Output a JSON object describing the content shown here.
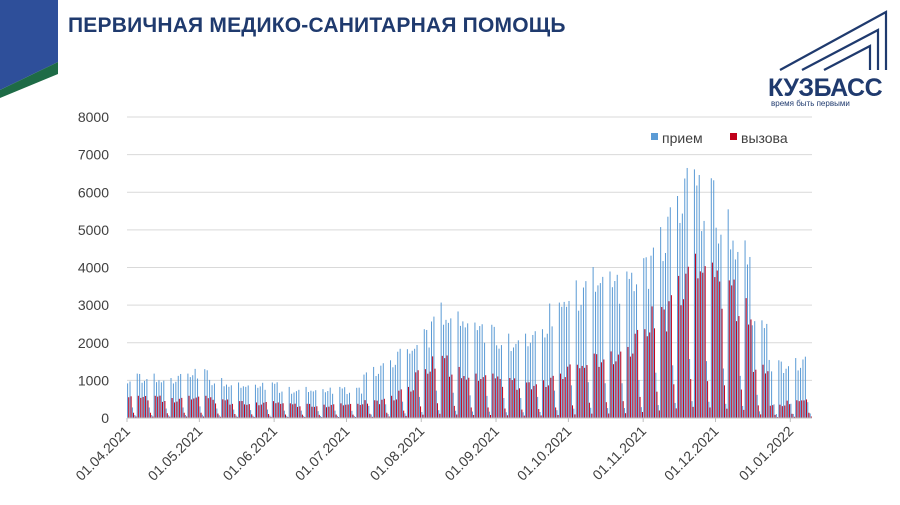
{
  "header": {
    "title": "ПЕРВИЧНАЯ МЕДИКО-САНИТАРНАЯ ПОМОЩЬ"
  },
  "logo": {
    "name": "КУЗБАСС",
    "tagline": "время быть первыми"
  },
  "colors": {
    "title": "#1f3a6e",
    "corner_blue": "#2e4f9a",
    "corner_green": "#1e6b46",
    "series_priem": "#5b9bd5",
    "series_vyzova": "#c0001a"
  },
  "chart_data": {
    "type": "bar",
    "ylim": [
      0,
      8000
    ],
    "yticks": [
      "0",
      "1000",
      "2000",
      "3000",
      "4000",
      "5000",
      "6000",
      "7000",
      "8000"
    ],
    "x_range": [
      "01.04.2021",
      "09.01.2022"
    ],
    "xticks": [
      "01.04.2021",
      "01.05.2021",
      "01.06.2021",
      "01.07.2021",
      "01.08.2021",
      "01.09.2021",
      "01.10.2021",
      "01.11.2021",
      "01.12.2021",
      "01.01.2022"
    ],
    "grid": "horizontal",
    "legend_position": "top-right",
    "series": [
      {
        "name": "прием",
        "color": "#5b9bd5",
        "weekly_values": [
          1000,
          1000,
          900,
          1000,
          1100,
          900,
          800,
          750,
          800,
          700,
          700,
          650,
          700,
          680,
          1150,
          1300,
          1550,
          2000,
          2600,
          2400,
          2150,
          2100,
          1900,
          1900,
          2000,
          2600,
          3100,
          3400,
          3300,
          3300,
          3600,
          4300,
          5000,
          5600,
          5400,
          4700,
          4000,
          2200,
          1300,
          1350,
          1500
        ]
      },
      {
        "name": "вызова",
        "color": "#c0001a",
        "weekly_values": [
          500,
          500,
          450,
          500,
          500,
          420,
          380,
          350,
          380,
          330,
          320,
          300,
          330,
          320,
          400,
          500,
          700,
          1100,
          1400,
          1150,
          1000,
          1000,
          900,
          800,
          850,
          1000,
          1200,
          1450,
          1500,
          1600,
          2000,
          2500,
          3200,
          3700,
          3500,
          3100,
          2700,
          1200,
          300,
          400,
          500
        ]
      }
    ]
  }
}
